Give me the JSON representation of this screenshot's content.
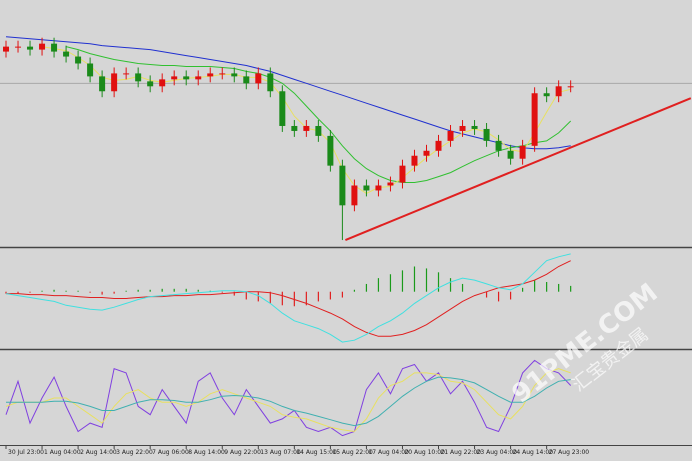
{
  "chart_data": [
    {
      "type": "candlestick",
      "ylim": [
        0,
        245
      ],
      "up_color": "#e01010",
      "down_color": "#1a8a1a",
      "open": [
        195,
        200,
        200,
        197,
        203,
        195,
        190,
        183,
        170,
        155,
        173,
        173,
        165,
        160,
        167,
        170,
        167,
        170,
        173,
        173,
        170,
        163,
        173,
        155,
        120,
        115,
        120,
        110,
        80,
        40,
        60,
        55,
        60,
        63,
        80,
        90,
        95,
        105,
        115,
        120,
        117,
        105,
        95,
        87,
        100,
        153,
        150,
        160
      ],
      "high": [
        206,
        206,
        206,
        209,
        209,
        201,
        196,
        189,
        176,
        179,
        179,
        179,
        171,
        173,
        176,
        176,
        176,
        179,
        179,
        179,
        176,
        179,
        179,
        161,
        126,
        126,
        126,
        116,
        86,
        66,
        66,
        66,
        69,
        86,
        96,
        101,
        111,
        121,
        126,
        126,
        123,
        111,
        101,
        106,
        159,
        159,
        166,
        166
      ],
      "low": [
        189,
        194,
        191,
        191,
        189,
        184,
        177,
        164,
        149,
        149,
        167,
        159,
        154,
        154,
        161,
        161,
        161,
        164,
        167,
        164,
        157,
        157,
        149,
        114,
        109,
        109,
        104,
        74,
        5,
        34,
        49,
        49,
        54,
        57,
        74,
        84,
        89,
        99,
        109,
        111,
        99,
        89,
        81,
        81,
        94,
        144,
        144,
        154
      ],
      "close": [
        200,
        200,
        197,
        203,
        195,
        190,
        183,
        170,
        155,
        173,
        173,
        165,
        160,
        167,
        170,
        167,
        170,
        173,
        173,
        170,
        163,
        173,
        155,
        120,
        115,
        120,
        110,
        80,
        40,
        60,
        55,
        60,
        63,
        80,
        90,
        95,
        105,
        115,
        120,
        117,
        105,
        95,
        87,
        100,
        153,
        150,
        160,
        160
      ],
      "series": [
        {
          "color": "#2030d0",
          "values": [
            210,
            209,
            208,
            207,
            206,
            205,
            204,
            203,
            201,
            200,
            199,
            198,
            197,
            195,
            193,
            191,
            189,
            187,
            185,
            183,
            181,
            178,
            175,
            171,
            167,
            163,
            159,
            155,
            151,
            147,
            143,
            139,
            135,
            131,
            127,
            123,
            119,
            115,
            112,
            109,
            106,
            103,
            100,
            98,
            97,
            97,
            98,
            100
          ]
        },
        {
          "color": "#30c030",
          "values": [
            null,
            null,
            null,
            null,
            null,
            200,
            197,
            193,
            190,
            187,
            185,
            183,
            182,
            181,
            181,
            180,
            180,
            180,
            179,
            178,
            175,
            173,
            169,
            163,
            153,
            140,
            127,
            115,
            100,
            87,
            77,
            70,
            65,
            63,
            63,
            65,
            69,
            73,
            79,
            85,
            90,
            95,
            98,
            100,
            103,
            105,
            113,
            125
          ]
        },
        {
          "color": "#e8e060",
          "values": [
            null,
            null,
            null,
            200,
            198,
            196,
            189,
            181,
            169,
            166,
            167,
            170,
            166,
            164,
            166,
            168,
            169,
            170,
            172,
            172,
            169,
            169,
            164,
            149,
            130,
            118,
            115,
            103,
            77,
            60,
            52,
            58,
            59,
            68,
            78,
            88,
            97,
            105,
            113,
            117,
            114,
            106,
            96,
            94,
            113,
            134,
            154,
            157
          ]
        }
      ],
      "reference_line": 163,
      "trendline": {
        "color": "#e02020",
        "x": [
          28.25,
          57
        ],
        "y": [
          5,
          148
        ]
      }
    },
    {
      "type": "macd",
      "ylim": [
        -57,
        43
      ],
      "up_color": "#1a9a1a",
      "down_color": "#e02020",
      "values": [
        -2,
        -2,
        -1,
        1,
        2,
        1,
        1,
        -1,
        -3,
        -2,
        1,
        2,
        2,
        3,
        3,
        3,
        2,
        1,
        -1,
        -4,
        -8,
        -10,
        -12,
        -14,
        -15,
        -14,
        -10,
        -8,
        -6,
        2,
        8,
        14,
        18,
        22,
        26,
        24,
        20,
        14,
        8,
        0,
        -6,
        -10,
        -8,
        4,
        12,
        10,
        8,
        6
      ],
      "series": [
        {
          "color": "#e02020",
          "values": [
            -2,
            -2,
            -3,
            -3,
            -4,
            -4,
            -5,
            -6,
            -6,
            -7,
            -7,
            -6,
            -5,
            -5,
            -4,
            -4,
            -3,
            -3,
            -2,
            -1,
            0,
            0,
            -1,
            -4,
            -8,
            -12,
            -17,
            -22,
            -28,
            -36,
            -42,
            -46,
            -46,
            -44,
            -40,
            -34,
            -26,
            -18,
            -10,
            -4,
            0,
            4,
            6,
            8,
            12,
            18,
            26,
            32
          ]
        },
        {
          "color": "#40e0e0",
          "values": [
            -2,
            -4,
            -6,
            -8,
            -10,
            -14,
            -16,
            -18,
            -19,
            -16,
            -12,
            -8,
            -5,
            -4,
            -3,
            -2,
            -1,
            0,
            1,
            1,
            0,
            -4,
            -12,
            -22,
            -30,
            -34,
            -38,
            -44,
            -52,
            -50,
            -44,
            -36,
            -30,
            -22,
            -12,
            -4,
            4,
            10,
            14,
            12,
            8,
            4,
            2,
            8,
            20,
            32,
            36,
            39
          ]
        }
      ]
    },
    {
      "type": "line",
      "ylim": [
        -5,
        105
      ],
      "series": [
        {
          "color": "#8040e0",
          "values": [
            30,
            70,
            20,
            50,
            75,
            40,
            10,
            20,
            15,
            85,
            80,
            40,
            30,
            60,
            40,
            20,
            70,
            80,
            50,
            30,
            60,
            40,
            20,
            25,
            35,
            15,
            10,
            15,
            5,
            10,
            60,
            80,
            55,
            85,
            90,
            70,
            80,
            55,
            70,
            45,
            15,
            10,
            40,
            80,
            95,
            85,
            80,
            65
          ]
        },
        {
          "color": "#e8e060",
          "values": [
            40,
            45,
            45,
            45,
            50,
            50,
            40,
            30,
            20,
            40,
            55,
            60,
            50,
            45,
            45,
            40,
            45,
            55,
            60,
            55,
            50,
            45,
            40,
            30,
            27,
            25,
            20,
            15,
            12,
            10,
            25,
            50,
            65,
            70,
            80,
            80,
            78,
            70,
            68,
            60,
            45,
            30,
            25,
            40,
            65,
            80,
            85,
            80
          ]
        },
        {
          "color": "#40b0b0",
          "values": [
            45,
            45,
            45,
            45,
            46,
            46,
            44,
            40,
            35,
            35,
            40,
            45,
            48,
            48,
            47,
            45,
            45,
            48,
            52,
            53,
            52,
            50,
            46,
            40,
            35,
            32,
            28,
            24,
            20,
            17,
            20,
            28,
            40,
            52,
            62,
            70,
            75,
            74,
            72,
            68,
            60,
            52,
            45,
            45,
            52,
            62,
            70,
            72
          ]
        }
      ],
      "xlim": [
        -0.5,
        57.1
      ],
      "xticks": [
        {
          "value": 0,
          "label": "30 Jul 23:00"
        },
        {
          "value": 3,
          "label": "1 Aug 04:00"
        },
        {
          "value": 6,
          "label": "2 Aug 14:00"
        },
        {
          "value": 9,
          "label": "3 Aug 22:00"
        },
        {
          "value": 12,
          "label": "7 Aug 06:00"
        },
        {
          "value": 15,
          "label": "8 Aug 14:00"
        },
        {
          "value": 18,
          "label": "9 Aug 22:00"
        },
        {
          "value": 21,
          "label": "13 Aug 07:00"
        },
        {
          "value": 24,
          "label": "14 Aug 15:00"
        },
        {
          "value": 27,
          "label": "15 Aug 22:00"
        },
        {
          "value": 30,
          "label": "17 Aug 04:00"
        },
        {
          "value": 33,
          "label": "20 Aug 10:00"
        },
        {
          "value": 36,
          "label": "21 Aug 22:00"
        },
        {
          "value": 39,
          "label": "23 Aug 04:00"
        },
        {
          "value": 42,
          "label": "24 Aug 14:00"
        },
        {
          "value": 45,
          "label": "27 Aug 23:00"
        }
      ]
    }
  ],
  "watermark": {
    "site": "91PME.COM",
    "name": "汇宝贵金属"
  }
}
